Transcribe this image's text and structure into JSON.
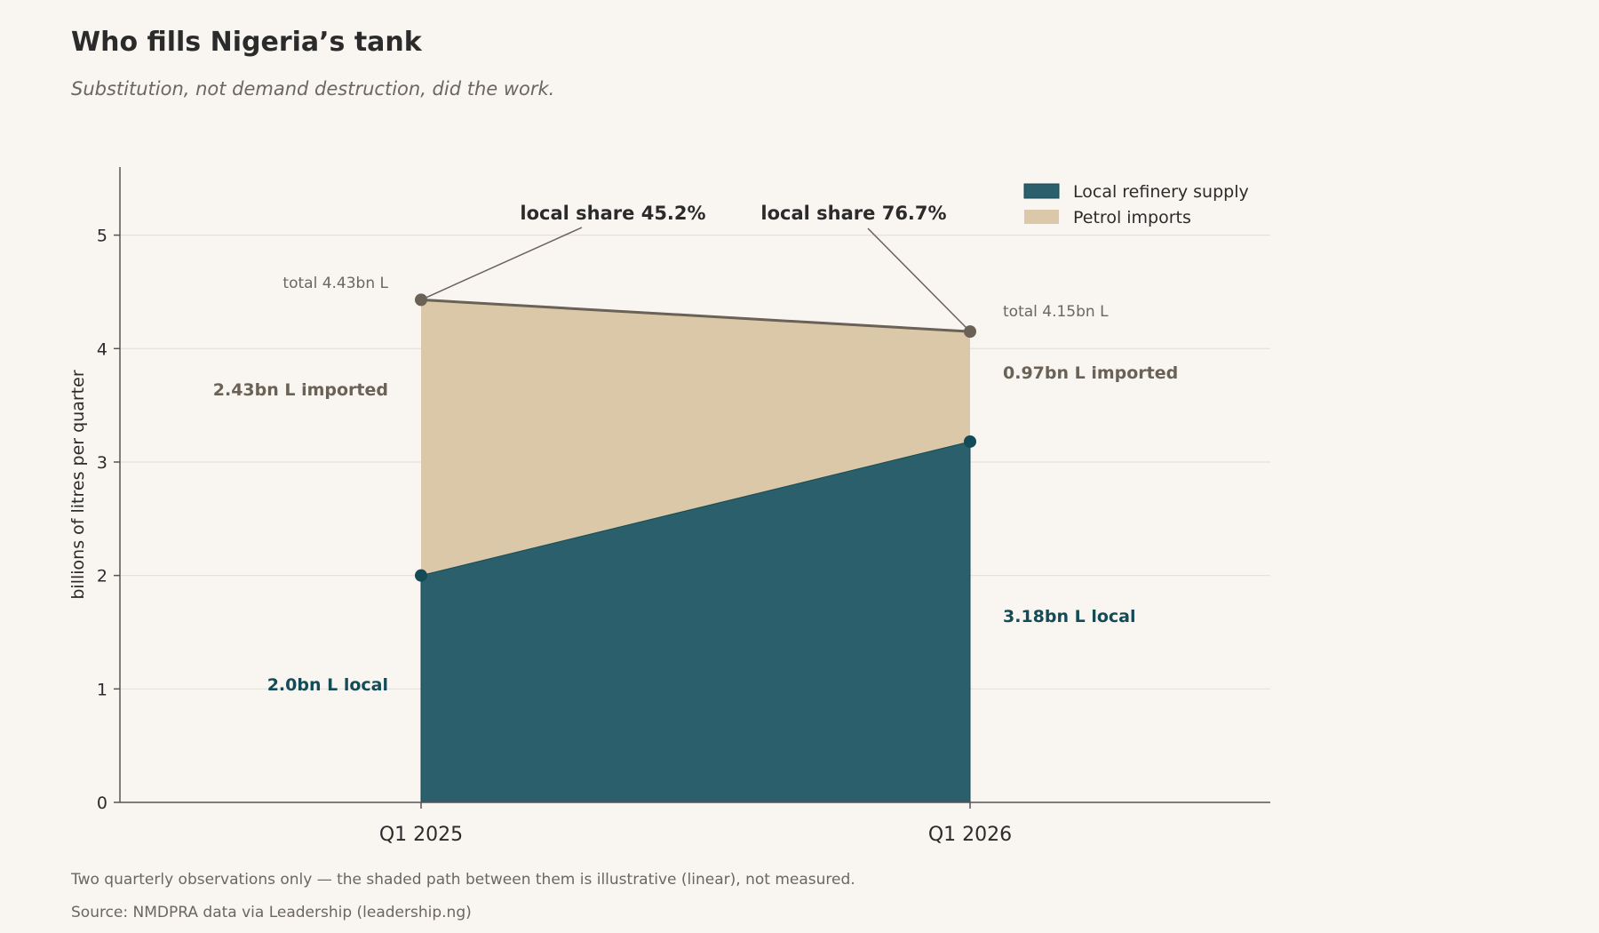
{
  "title": "Who fills Nigeria’s tank",
  "subtitle": "Substitution, not demand destruction, did the work.",
  "footnote": "Two quarterly observations only — the shaded path between them is illustrative (linear), not measured.",
  "source": "Source: NMDPRA data via Leadership (leadership.ng)",
  "colors": {
    "background": "#f9f6f2",
    "local": "#2b5f6b",
    "local_marker": "#134b57",
    "imports": "#dac8a8",
    "total_line": "#6a6157",
    "grid": "#e6e1da",
    "axis": "#555555"
  },
  "chart_data": {
    "type": "area",
    "stacked": true,
    "categories": [
      "Q1 2025",
      "Q1 2026"
    ],
    "ylabel": "billions of litres per quarter",
    "xlabel": "",
    "ylim": [
      0,
      5.6
    ],
    "yticks": [
      0,
      1,
      2,
      3,
      4,
      5
    ],
    "grid": true,
    "legend_position": "top-right",
    "series": [
      {
        "name": "Local refinery supply",
        "values": [
          2.0,
          3.18
        ]
      },
      {
        "name": "Petrol imports",
        "values": [
          2.43,
          0.97
        ]
      }
    ],
    "totals": [
      4.43,
      4.15
    ],
    "annotations": {
      "total_labels": [
        "total 4.43bn L",
        "total 4.15bn L"
      ],
      "import_labels": [
        "2.43bn L imported",
        "0.97bn L imported"
      ],
      "local_labels": [
        "2.0bn L local",
        "3.18bn L local"
      ],
      "share_labels": [
        "local share 45.2%",
        "local share 76.7%"
      ]
    }
  }
}
